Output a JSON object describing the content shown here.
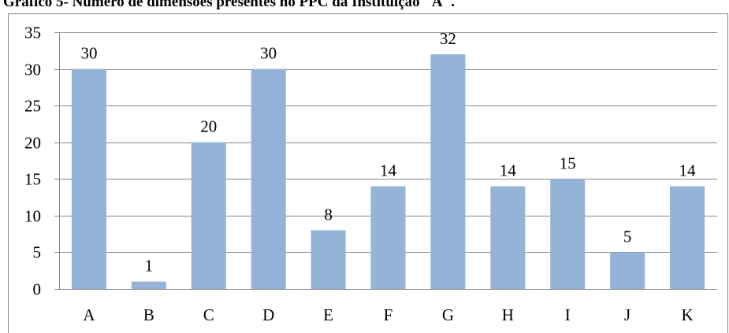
{
  "chart_data": {
    "type": "bar",
    "title": "Gráfico 5- Número de dimensões presentes no PPC da Instituição \"A\".",
    "categories": [
      "A",
      "B",
      "C",
      "D",
      "E",
      "F",
      "G",
      "H",
      "I",
      "J",
      "K"
    ],
    "values": [
      30,
      1,
      20,
      30,
      8,
      14,
      32,
      14,
      15,
      5,
      14
    ],
    "ylim": [
      0,
      35
    ],
    "yticks": [
      "0",
      "5",
      "10",
      "15",
      "20",
      "25",
      "30",
      "35"
    ],
    "xlabel": "",
    "ylabel": "",
    "grid": true,
    "legend": "none",
    "bar_color": "#95b3d7",
    "grid_color": "#868686",
    "border_color": "#868686"
  }
}
